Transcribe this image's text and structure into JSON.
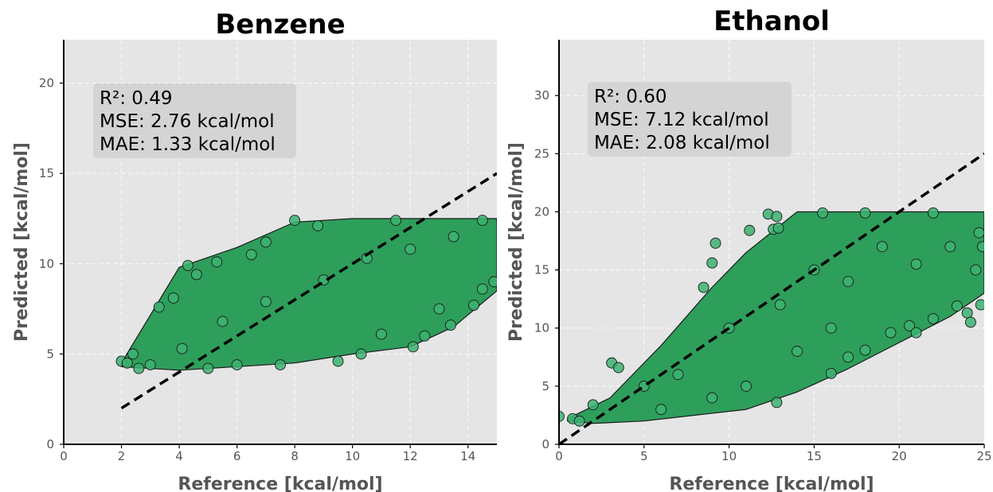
{
  "chart_data": [
    {
      "type": "scatter",
      "title": "Benzene",
      "xlabel": "Reference [kcal/mol]",
      "ylabel": "Predicted [kcal/mol]",
      "xlim": [
        0,
        15
      ],
      "ylim": [
        0,
        22.4
      ],
      "xticks": [
        0,
        2,
        4,
        6,
        8,
        10,
        12,
        14
      ],
      "yticks": [
        0,
        5,
        10,
        15,
        20
      ],
      "grid": true,
      "stats": [
        "R²: 0.49",
        "MSE: 2.76 kcal/mol",
        "MAE: 1.33 kcal/mol"
      ],
      "reference_line": {
        "x": [
          2,
          15
        ],
        "y": [
          2,
          15
        ],
        "style": "dashed"
      },
      "cloud_envelope": [
        [
          2.0,
          4.5
        ],
        [
          4.0,
          9.8
        ],
        [
          6.0,
          10.9
        ],
        [
          8.0,
          12.3
        ],
        [
          10.0,
          12.5
        ],
        [
          15.0,
          12.5
        ],
        [
          15.0,
          8.5
        ],
        [
          13.5,
          6.5
        ],
        [
          12.0,
          5.4
        ],
        [
          10.0,
          5.0
        ],
        [
          8.0,
          4.5
        ],
        [
          6.0,
          4.3
        ],
        [
          4.0,
          4.1
        ],
        [
          2.0,
          4.3
        ]
      ],
      "points": [
        {
          "x": 2.0,
          "y": 4.6
        },
        {
          "x": 2.2,
          "y": 4.5
        },
        {
          "x": 2.4,
          "y": 5.0
        },
        {
          "x": 2.6,
          "y": 4.2
        },
        {
          "x": 3.3,
          "y": 7.6
        },
        {
          "x": 3.8,
          "y": 8.1
        },
        {
          "x": 4.3,
          "y": 9.9
        },
        {
          "x": 4.6,
          "y": 9.4
        },
        {
          "x": 5.3,
          "y": 10.1
        },
        {
          "x": 7.0,
          "y": 11.2
        },
        {
          "x": 8.0,
          "y": 12.4
        },
        {
          "x": 9.5,
          "y": 4.6
        },
        {
          "x": 10.3,
          "y": 5.0
        },
        {
          "x": 11.0,
          "y": 6.1
        },
        {
          "x": 12.1,
          "y": 5.4
        },
        {
          "x": 12.5,
          "y": 6.0
        },
        {
          "x": 13.4,
          "y": 6.6
        },
        {
          "x": 13.0,
          "y": 7.5
        },
        {
          "x": 14.2,
          "y": 7.7
        },
        {
          "x": 14.5,
          "y": 8.6
        },
        {
          "x": 14.9,
          "y": 9.0
        },
        {
          "x": 14.5,
          "y": 12.4
        },
        {
          "x": 11.5,
          "y": 12.4
        },
        {
          "x": 8.8,
          "y": 12.1
        },
        {
          "x": 6.5,
          "y": 10.5
        },
        {
          "x": 5.0,
          "y": 4.2
        },
        {
          "x": 6.0,
          "y": 4.4
        },
        {
          "x": 7.5,
          "y": 4.4
        },
        {
          "x": 3.0,
          "y": 4.4
        },
        {
          "x": 4.1,
          "y": 5.3
        },
        {
          "x": 5.5,
          "y": 6.8
        },
        {
          "x": 7.0,
          "y": 7.9
        },
        {
          "x": 9.0,
          "y": 9.1
        },
        {
          "x": 10.5,
          "y": 10.3
        },
        {
          "x": 12.0,
          "y": 10.8
        },
        {
          "x": 13.5,
          "y": 11.5
        }
      ]
    },
    {
      "type": "scatter",
      "title": "Ethanol",
      "xlabel": "Reference [kcal/mol]",
      "ylabel": "Predicted [kcal/mol]",
      "xlim": [
        0,
        25
      ],
      "ylim": [
        0,
        34.8
      ],
      "xticks": [
        0,
        5,
        10,
        15,
        20,
        25
      ],
      "yticks": [
        0,
        5,
        10,
        15,
        20,
        25,
        30
      ],
      "grid": true,
      "stats": [
        "R²: 0.60",
        "MSE: 7.12 kcal/mol",
        "MAE: 2.08 kcal/mol"
      ],
      "reference_line": {
        "x": [
          0,
          25
        ],
        "y": [
          0,
          25
        ],
        "style": "dashed"
      },
      "cloud_envelope": [
        [
          0.5,
          2.2
        ],
        [
          3.0,
          4.0
        ],
        [
          6.0,
          8.5
        ],
        [
          9.0,
          13.5
        ],
        [
          11.0,
          16.5
        ],
        [
          14.0,
          20.0
        ],
        [
          25.0,
          20.0
        ],
        [
          25.0,
          13.0
        ],
        [
          23.0,
          11.0
        ],
        [
          21.0,
          9.5
        ],
        [
          19.0,
          8.0
        ],
        [
          17.0,
          6.5
        ],
        [
          14.0,
          4.5
        ],
        [
          11.0,
          3.0
        ],
        [
          8.0,
          2.5
        ],
        [
          5.0,
          2.0
        ],
        [
          2.0,
          1.8
        ],
        [
          0.5,
          2.0
        ]
      ],
      "points": [
        {
          "x": 0.0,
          "y": 2.4
        },
        {
          "x": 0.8,
          "y": 2.2
        },
        {
          "x": 1.2,
          "y": 2.0
        },
        {
          "x": 2.0,
          "y": 3.4
        },
        {
          "x": 3.1,
          "y": 7.0
        },
        {
          "x": 3.5,
          "y": 6.6
        },
        {
          "x": 8.5,
          "y": 13.5
        },
        {
          "x": 9.0,
          "y": 15.6
        },
        {
          "x": 9.2,
          "y": 17.3
        },
        {
          "x": 11.2,
          "y": 18.4
        },
        {
          "x": 12.3,
          "y": 19.8
        },
        {
          "x": 12.8,
          "y": 19.6
        },
        {
          "x": 12.6,
          "y": 18.5
        },
        {
          "x": 12.9,
          "y": 18.6
        },
        {
          "x": 12.8,
          "y": 3.6
        },
        {
          "x": 16.0,
          "y": 6.1
        },
        {
          "x": 17.0,
          "y": 7.5
        },
        {
          "x": 18.0,
          "y": 8.1
        },
        {
          "x": 19.5,
          "y": 9.6
        },
        {
          "x": 20.6,
          "y": 10.2
        },
        {
          "x": 21.0,
          "y": 9.6
        },
        {
          "x": 22.0,
          "y": 10.8
        },
        {
          "x": 23.4,
          "y": 11.9
        },
        {
          "x": 24.0,
          "y": 11.3
        },
        {
          "x": 24.2,
          "y": 10.5
        },
        {
          "x": 24.8,
          "y": 12.0
        },
        {
          "x": 24.5,
          "y": 15.0
        },
        {
          "x": 24.9,
          "y": 17.0
        },
        {
          "x": 24.7,
          "y": 18.2
        },
        {
          "x": 22.0,
          "y": 19.9
        },
        {
          "x": 18.0,
          "y": 19.9
        },
        {
          "x": 15.5,
          "y": 19.9
        },
        {
          "x": 5.0,
          "y": 5.0
        },
        {
          "x": 7.0,
          "y": 6.0
        },
        {
          "x": 10.0,
          "y": 10.0
        },
        {
          "x": 13.0,
          "y": 12.0
        },
        {
          "x": 15.0,
          "y": 15.0
        },
        {
          "x": 17.0,
          "y": 14.0
        },
        {
          "x": 19.0,
          "y": 17.0
        },
        {
          "x": 21.0,
          "y": 15.5
        },
        {
          "x": 23.0,
          "y": 17.0
        },
        {
          "x": 6.0,
          "y": 3.0
        },
        {
          "x": 9.0,
          "y": 4.0
        },
        {
          "x": 11.0,
          "y": 5.0
        },
        {
          "x": 14.0,
          "y": 8.0
        },
        {
          "x": 16.0,
          "y": 10.0
        }
      ]
    }
  ],
  "colors": {
    "plot_bg": "#e5e5e5",
    "grid": "#ffffff",
    "marker_fill": "#3cb371",
    "marker_edge": "#1a1a1a",
    "cloud_fill": "#2e9e5b",
    "reference_line": "#000000",
    "stats_box": "#d2d2d2",
    "axis_text": "#555555"
  }
}
